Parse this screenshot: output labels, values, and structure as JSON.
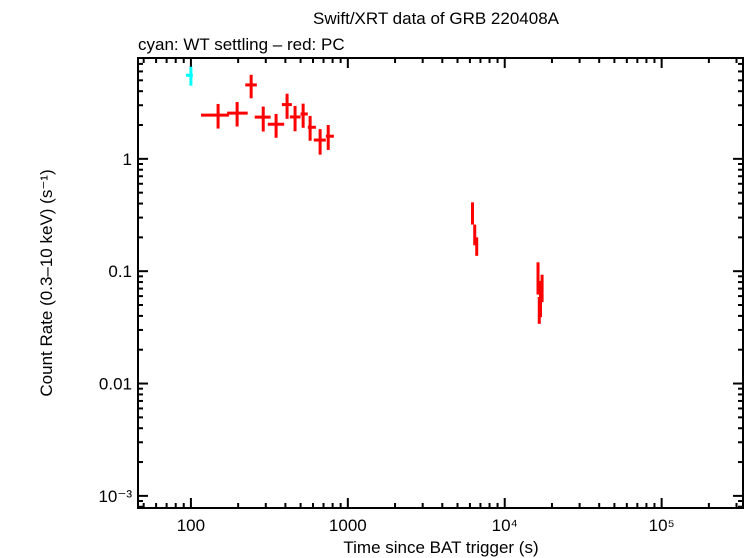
{
  "chart_data": {
    "type": "scatter",
    "title": "Swift/XRT data of GRB 220408A",
    "subtitle": "cyan: WT settling – red: PC",
    "xlabel": "Time since BAT trigger (s)",
    "ylabel": "Count Rate (0.3–10 keV) (s⁻¹)",
    "xscale": "log",
    "yscale": "log",
    "xlim": [
      46,
      330000
    ],
    "ylim": [
      0.00078,
      7.9
    ],
    "grid": false,
    "x_ticks": [
      {
        "value": 100,
        "label": "100"
      },
      {
        "value": 1000,
        "label": "1000"
      },
      {
        "value": 10000,
        "label": "10⁴"
      },
      {
        "value": 100000,
        "label": "10⁵"
      }
    ],
    "y_ticks": [
      {
        "value": 1,
        "label": "1"
      },
      {
        "value": 0.1,
        "label": "0.1"
      },
      {
        "value": 0.01,
        "label": "0.01"
      },
      {
        "value": 0.001,
        "label": "10⁻³"
      }
    ],
    "series": [
      {
        "mode": "WT settling",
        "color": "#00ffff",
        "points": [
          {
            "x": 100,
            "xlo": 93,
            "xhi": 103,
            "y": 5.55,
            "ylo": 4.48,
            "yhi": 6.6
          }
        ]
      },
      {
        "mode": "PC",
        "color": "#ff0000",
        "points": [
          {
            "x": 149,
            "xlo": 116,
            "xhi": 175,
            "y": 2.45,
            "ylo": 1.86,
            "yhi": 3.08
          },
          {
            "x": 197,
            "xlo": 170,
            "xhi": 230,
            "y": 2.55,
            "ylo": 1.94,
            "yhi": 3.21
          },
          {
            "x": 242,
            "xlo": 222,
            "xhi": 263,
            "y": 4.55,
            "ylo": 3.46,
            "yhi": 5.6
          },
          {
            "x": 289,
            "xlo": 255,
            "xhi": 322,
            "y": 2.35,
            "ylo": 1.75,
            "yhi": 2.92
          },
          {
            "x": 349,
            "xlo": 309,
            "xhi": 393,
            "y": 2.03,
            "ylo": 1.54,
            "yhi": 2.51
          },
          {
            "x": 410,
            "xlo": 380,
            "xhi": 440,
            "y": 3.04,
            "ylo": 2.27,
            "yhi": 3.8
          },
          {
            "x": 461,
            "xlo": 427,
            "xhi": 500,
            "y": 2.36,
            "ylo": 1.76,
            "yhi": 2.96
          },
          {
            "x": 519,
            "xlo": 500,
            "xhi": 556,
            "y": 2.51,
            "ylo": 1.89,
            "yhi": 3.1
          },
          {
            "x": 575,
            "xlo": 556,
            "xhi": 626,
            "y": 1.91,
            "ylo": 1.45,
            "yhi": 2.41
          },
          {
            "x": 666,
            "xlo": 607,
            "xhi": 724,
            "y": 1.47,
            "ylo": 1.09,
            "yhi": 1.84
          },
          {
            "x": 750,
            "xlo": 724,
            "xhi": 815,
            "y": 1.59,
            "ylo": 1.2,
            "yhi": 2.0
          },
          {
            "x": 6230,
            "xlo": 6150,
            "xhi": 6330,
            "y": 0.322,
            "ylo": 0.26,
            "yhi": 0.41
          },
          {
            "x": 6440,
            "xlo": 6330,
            "xhi": 6540,
            "y": 0.211,
            "ylo": 0.17,
            "yhi": 0.26
          },
          {
            "x": 6630,
            "xlo": 6540,
            "xhi": 6700,
            "y": 0.182,
            "ylo": 0.137,
            "yhi": 0.2
          },
          {
            "x": 16300,
            "xlo": 16100,
            "xhi": 16500,
            "y": 0.097,
            "ylo": 0.062,
            "yhi": 0.12
          },
          {
            "x": 16900,
            "xlo": 16700,
            "xhi": 17100,
            "y": 0.062,
            "ylo": 0.039,
            "yhi": 0.082
          },
          {
            "x": 17300,
            "xlo": 17100,
            "xhi": 17500,
            "y": 0.076,
            "ylo": 0.053,
            "yhi": 0.093
          },
          {
            "x": 16600,
            "xlo": 16500,
            "xhi": 16700,
            "y": 0.045,
            "ylo": 0.034,
            "yhi": 0.059
          }
        ]
      }
    ]
  }
}
